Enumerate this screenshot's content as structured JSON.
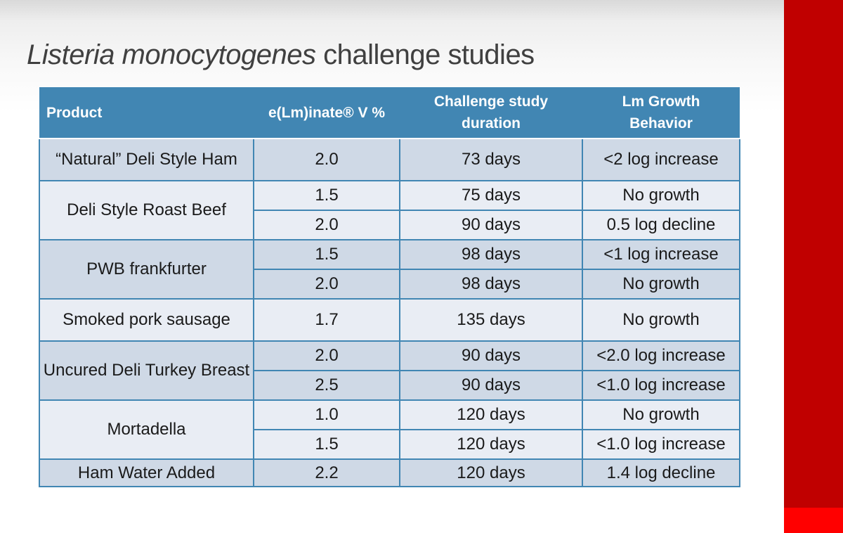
{
  "slide": {
    "title_italic": "Listeria monocytogenes",
    "title_rest": " challenge studies"
  },
  "table": {
    "headers": {
      "product": "Product",
      "percent": "e(Lm)inate® V %",
      "duration_line1": "Challenge study",
      "duration_line2": "duration",
      "growth_line1": "Lm Growth",
      "growth_line2": "Behavior"
    },
    "products": [
      "“Natural” Deli Style Ham",
      "Deli Style Roast Beef",
      "PWB frankfurter",
      "Smoked pork sausage",
      "Uncured Deli Turkey Breast",
      "Mortadella",
      "Ham Water Added"
    ],
    "rows": [
      {
        "percent": "2.0",
        "duration": "73 days",
        "growth": "<2 log increase"
      },
      {
        "percent": "1.5",
        "duration": "75 days",
        "growth": "No growth"
      },
      {
        "percent": "2.0",
        "duration": "90 days",
        "growth": "0.5 log decline"
      },
      {
        "percent": "1.5",
        "duration": "98 days",
        "growth": "<1 log increase"
      },
      {
        "percent": "2.0",
        "duration": "98 days",
        "growth": "No growth"
      },
      {
        "percent": "1.7",
        "duration": "135 days",
        "growth": "No growth"
      },
      {
        "percent": "2.0",
        "duration": "90 days",
        "growth": "<2.0 log increase"
      },
      {
        "percent": "2.5",
        "duration": "90 days",
        "growth": "<1.0 log increase"
      },
      {
        "percent": "1.0",
        "duration": "120 days",
        "growth": "No growth"
      },
      {
        "percent": "1.5",
        "duration": "120 days",
        "growth": "<1.0 log increase"
      },
      {
        "percent": "2.2",
        "duration": "120 days",
        "growth": "1.4 log decline"
      }
    ]
  },
  "colors": {
    "header": "#4186b3",
    "band_dark": "#cfd9e6",
    "band_light": "#e9edf4",
    "accent_red": "#c00000",
    "accent_bright_red": "#ff0000"
  }
}
